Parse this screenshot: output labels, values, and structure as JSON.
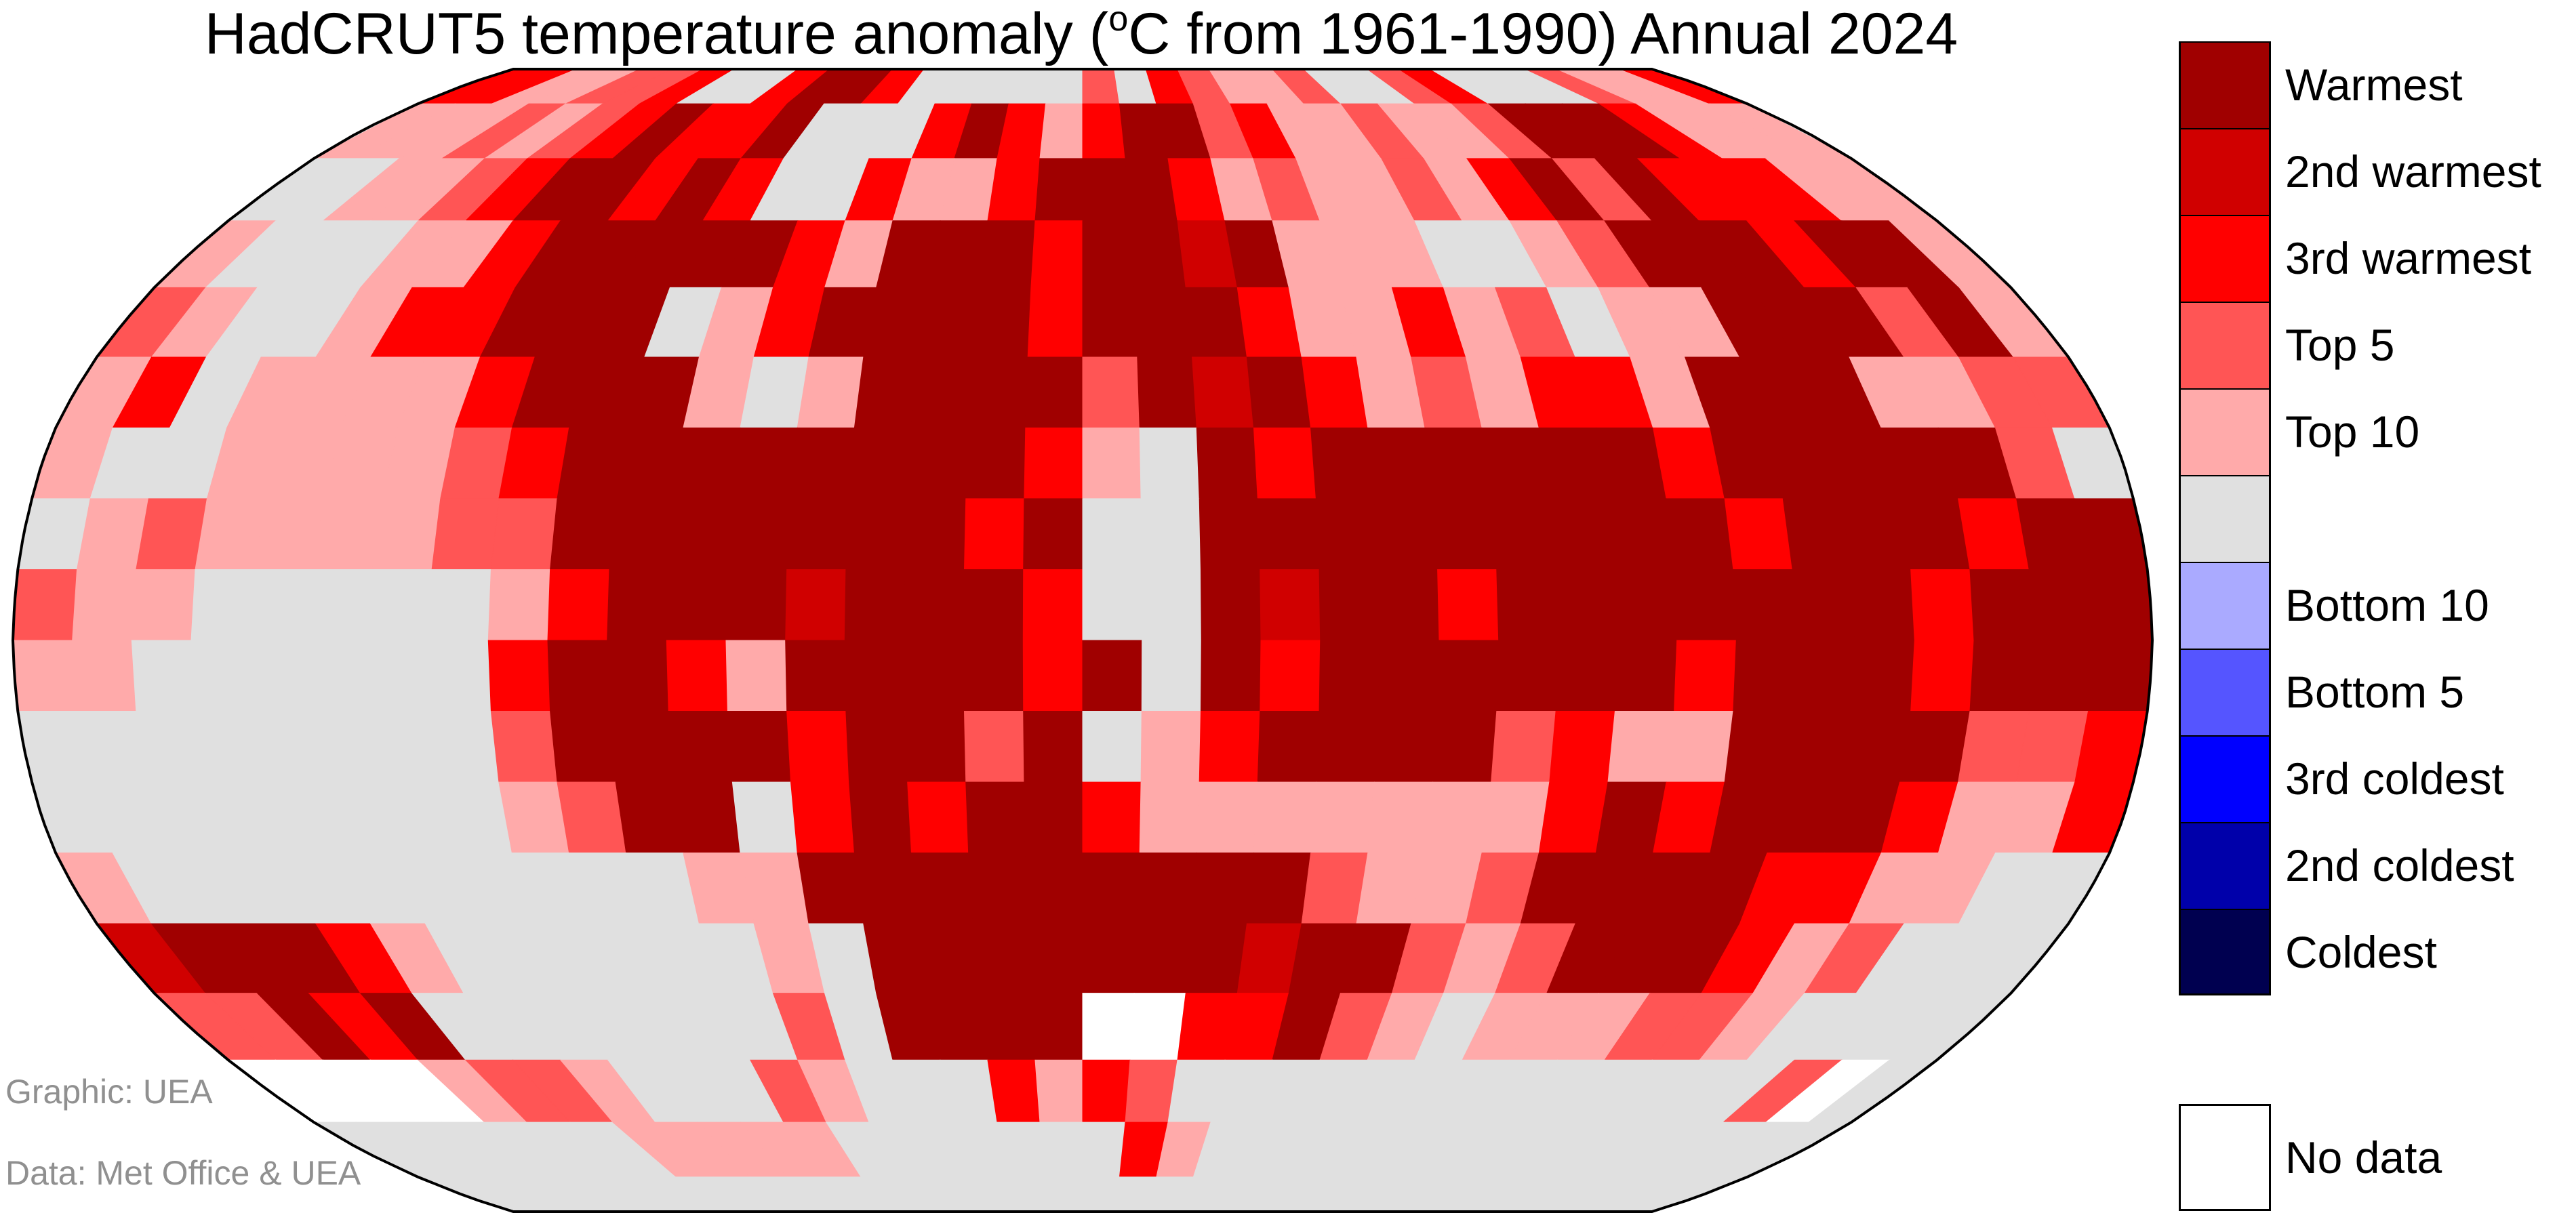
{
  "title": {
    "prefix": "HadCRUT5 temperature anomaly (",
    "degree": "o",
    "suffix": "C from 1961-1990) Annual 2024"
  },
  "legend": {
    "items": [
      {
        "key": "W",
        "label": "Warmest",
        "color": "#a00000"
      },
      {
        "key": "2",
        "label": "2nd warmest",
        "color": "#d00000"
      },
      {
        "key": "3",
        "label": "3rd warmest",
        "color": "#ff0000"
      },
      {
        "key": "5",
        "label": "Top 5",
        "color": "#ff5555"
      },
      {
        "key": "T",
        "label": "Top 10",
        "color": "#ffaaaa"
      },
      {
        "key": "N",
        "label": "",
        "color": "#e0e0e0"
      },
      {
        "key": "b",
        "label": "Bottom 10",
        "color": "#aaaaff"
      },
      {
        "key": "B",
        "label": "Bottom 5",
        "color": "#5555ff"
      },
      {
        "key": "c",
        "label": "3rd coldest",
        "color": "#0000ff"
      },
      {
        "key": "d",
        "label": "2nd coldest",
        "color": "#0000aa"
      },
      {
        "key": "C",
        "label": "Coldest",
        "color": "#000050"
      }
    ],
    "no_data": {
      "key": "X",
      "label": "No data",
      "color": "#ffffff"
    }
  },
  "credits": {
    "graphic": "Graphic: UEA",
    "data": "Data: Met Office & UEA"
  },
  "map_data": {
    "projection": "Robinson",
    "cell_size_deg": 10,
    "lon_start": -180,
    "lat_start": 90,
    "rows": [
      "33TT553NN3WW3NNNNN5N35TT5NN53NNN5TT3",
      "TTT5T53W33WNNN3W3T3WW53TT5TT5WWW3TTT",
      "NNTT53WW3W3NN3TT3WWW3T5TT5T3W5W333TT",
      "TNNNTT3WWWWW3TWWW3WW2WTTTNNT5WWW3WWT",
      "5TNNT33WWWNT3WWWW3WWW3TT3T5NTTWWW5WT",
      "T3NTTTT3WWWTNTWWWW5W2W3T5T33TWWWTT55",
      "TNNTTTT53WWWWWWWW3TNW3WWWWWW3WWWWW5N",
      "NT5TTTT55WWWWWWW3WNNWWWWWWWWW3WWW3WW",
      "5TTNNNNNT3WWW2WWW3NNW2WW3WWWWWWW3WWW",
      "TTNNNNNN3WW3TWWWW3WNW3WWWWWW3WWW3WWW",
      "NNNNNNNN5WWWW3WW5WNT3WWWW53TTWWWW553",
      "NNNNNNNNT5WWN3W3WW3TTTTTTT3W3WWW3TT3",
      "TNNNNNNNNNNTTWWWWWWWWW5TT5WWWW33TTNN",
      "2WWW3TNNNNNNTNWWWWWWW2WW5T5WWW3T5NNN",
      "55W3WNNNNNNN5NWWWWXX33W5TNTTT55TNNNN",
      "XXXXT55TNNN5TNNN3T35NNNNNNNNNNNNN5XN",
      "NNNNNNNTTTTTNNNNNNN3TNNNNNNNNNNNNNNN",
      "NNNNNNNNNNNNNNNNNNNNNNNNNNNNNNNNNNNN"
    ]
  }
}
